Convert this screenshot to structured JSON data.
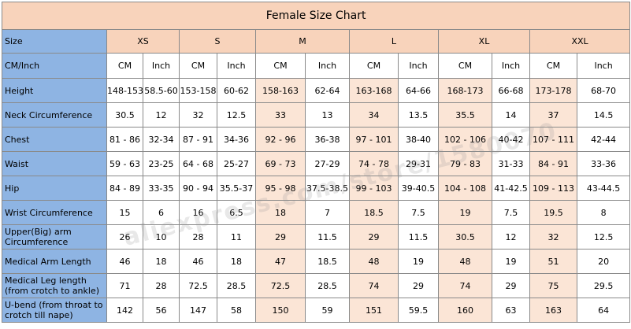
{
  "title": "Female Size Chart",
  "size_label": "Size",
  "sizes": [
    "XS",
    "S",
    "M",
    "L",
    "XL",
    "XXL"
  ],
  "unit_row_label": "CM/Inch",
  "units": {
    "cm": "CM",
    "inch": "Inch"
  },
  "rows": [
    {
      "label": "Height",
      "values": [
        "148-153",
        "58.5-60",
        "153-158",
        "60-62",
        "158-163",
        "62-64",
        "163-168",
        "64-66",
        "168-173",
        "66-68",
        "173-178",
        "68-70"
      ]
    },
    {
      "label": "Neck Circumference",
      "values": [
        "30.5",
        "12",
        "32",
        "12.5",
        "33",
        "13",
        "34",
        "13.5",
        "35.5",
        "14",
        "37",
        "14.5"
      ]
    },
    {
      "label": "Chest",
      "values": [
        "81 - 86",
        "32-34",
        "87 - 91",
        "34-36",
        "92 - 96",
        "36-38",
        "97 - 101",
        "38-40",
        "102 - 106",
        "40-42",
        "107 - 111",
        "42-44"
      ]
    },
    {
      "label": "Waist",
      "values": [
        "59 - 63",
        "23-25",
        "64 - 68",
        "25-27",
        "69 - 73",
        "27-29",
        "74 - 78",
        "29-31",
        "79 - 83",
        "31-33",
        "84 - 91",
        "33-36"
      ]
    },
    {
      "label": "Hip",
      "values": [
        "84 - 89",
        "33-35",
        "90 - 94",
        "35.5-37",
        "95 - 98",
        "37.5-38.5",
        "99 - 103",
        "39-40.5",
        "104 - 108",
        "41-42.5",
        "109 - 113",
        "43-44.5"
      ]
    },
    {
      "label": "Wrist Circumference",
      "values": [
        "15",
        "6",
        "16",
        "6.5",
        "18",
        "7",
        "18.5",
        "7.5",
        "19",
        "7.5",
        "19.5",
        "8"
      ]
    },
    {
      "label": "Upper(Big) arm Circumference",
      "values": [
        "26",
        "10",
        "28",
        "11",
        "29",
        "11.5",
        "29",
        "11.5",
        "30.5",
        "12",
        "32",
        "12.5"
      ]
    },
    {
      "label": "Medical Arm Length",
      "values": [
        "46",
        "18",
        "46",
        "18",
        "47",
        "18.5",
        "48",
        "19",
        "48",
        "19",
        "51",
        "20"
      ]
    },
    {
      "label": "Medical Leg length (from crotch to ankle)",
      "values": [
        "71",
        "28",
        "72.5",
        "28.5",
        "72.5",
        "28.5",
        "74",
        "29",
        "74",
        "29",
        "75",
        "29.5"
      ]
    },
    {
      "label": "U-bend (from throat to crotch till nape)",
      "values": [
        "142",
        "56",
        "147",
        "58",
        "150",
        "59",
        "151",
        "59.5",
        "160",
        "63",
        "163",
        "64"
      ]
    }
  ],
  "watermark": "aliexpress.com/store/1580070"
}
